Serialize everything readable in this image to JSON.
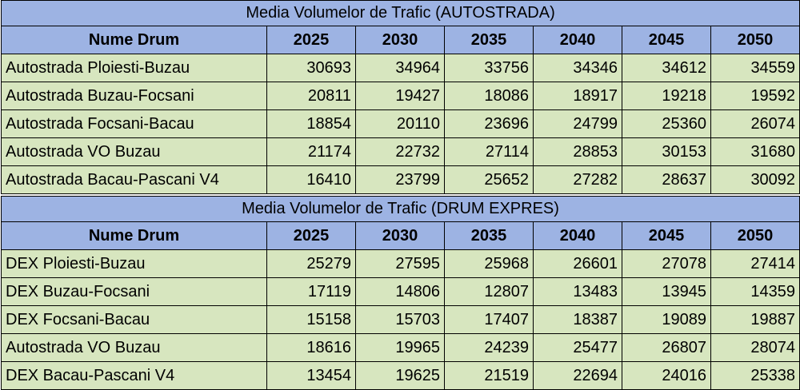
{
  "tables": [
    {
      "title": "Media Volumelor de Trafic (AUTOSTRADA)",
      "header": [
        "Nume Drum",
        "2025",
        "2030",
        "2035",
        "2040",
        "2045",
        "2050"
      ],
      "rows": [
        [
          "Autostrada Ploiesti-Buzau",
          "30693",
          "34964",
          "33756",
          "34346",
          "34612",
          "34559"
        ],
        [
          "Autostrada Buzau-Focsani",
          "20811",
          "19427",
          "18086",
          "18917",
          "19218",
          "19592"
        ],
        [
          "Autostrada Focsani-Bacau",
          "18854",
          "20110",
          "23696",
          "24799",
          "25360",
          "26074"
        ],
        [
          "Autostrada VO Buzau",
          "21174",
          "22732",
          "27114",
          "28853",
          "30153",
          "31680"
        ],
        [
          "Autostrada Bacau-Pascani V4",
          "16410",
          "23799",
          "25652",
          "27282",
          "28637",
          "30092"
        ]
      ]
    },
    {
      "title": "Media Volumelor de Trafic (DRUM EXPRES)",
      "header": [
        "Nume Drum",
        "2025",
        "2030",
        "2035",
        "2040",
        "2045",
        "2050"
      ],
      "rows": [
        [
          "DEX Ploiesti-Buzau",
          "25279",
          "27595",
          "25968",
          "26601",
          "27078",
          "27414"
        ],
        [
          "DEX Buzau-Focsani",
          "17119",
          "14806",
          "12807",
          "13483",
          "13945",
          "14359"
        ],
        [
          "DEX Focsani-Bacau",
          "15158",
          "15703",
          "17407",
          "18387",
          "19089",
          "19887"
        ],
        [
          "Autostrada VO Buzau",
          "18616",
          "19965",
          "24239",
          "25477",
          "26807",
          "28074"
        ],
        [
          "DEX Bacau-Pascani V4",
          "13454",
          "19625",
          "21519",
          "22694",
          "24016",
          "25338"
        ]
      ]
    }
  ],
  "colors": {
    "header_bg": "#9db3e3",
    "row_bg": "#d7e6bf",
    "border": "#000000"
  }
}
